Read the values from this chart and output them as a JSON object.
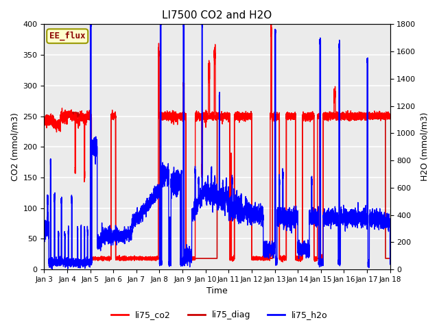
{
  "title": "LI7500 CO2 and H2O",
  "xlabel": "Time",
  "ylabel_left": "CO2 (mmol/m3)",
  "ylabel_right": "H2O (mmol/m3)",
  "xlim_days": [
    3,
    18
  ],
  "ylim_left": [
    0,
    400
  ],
  "ylim_right": [
    0,
    1800
  ],
  "annotation_text": "EE_flux",
  "annotation_color": "#8B0000",
  "annotation_bg": "#FFFFCC",
  "annotation_border": "#999900",
  "bg_color": "#EBEBEB",
  "fig_bg": "#FFFFFF",
  "legend_entries": [
    "li75_co2",
    "li75_diag",
    "li75_h2o"
  ],
  "co2_color": "#FF0000",
  "diag_color": "#CC0000",
  "h2o_color": "#0000FF",
  "title_fontsize": 11,
  "lw_co2": 1.0,
  "lw_diag": 1.2,
  "lw_h2o": 1.0
}
